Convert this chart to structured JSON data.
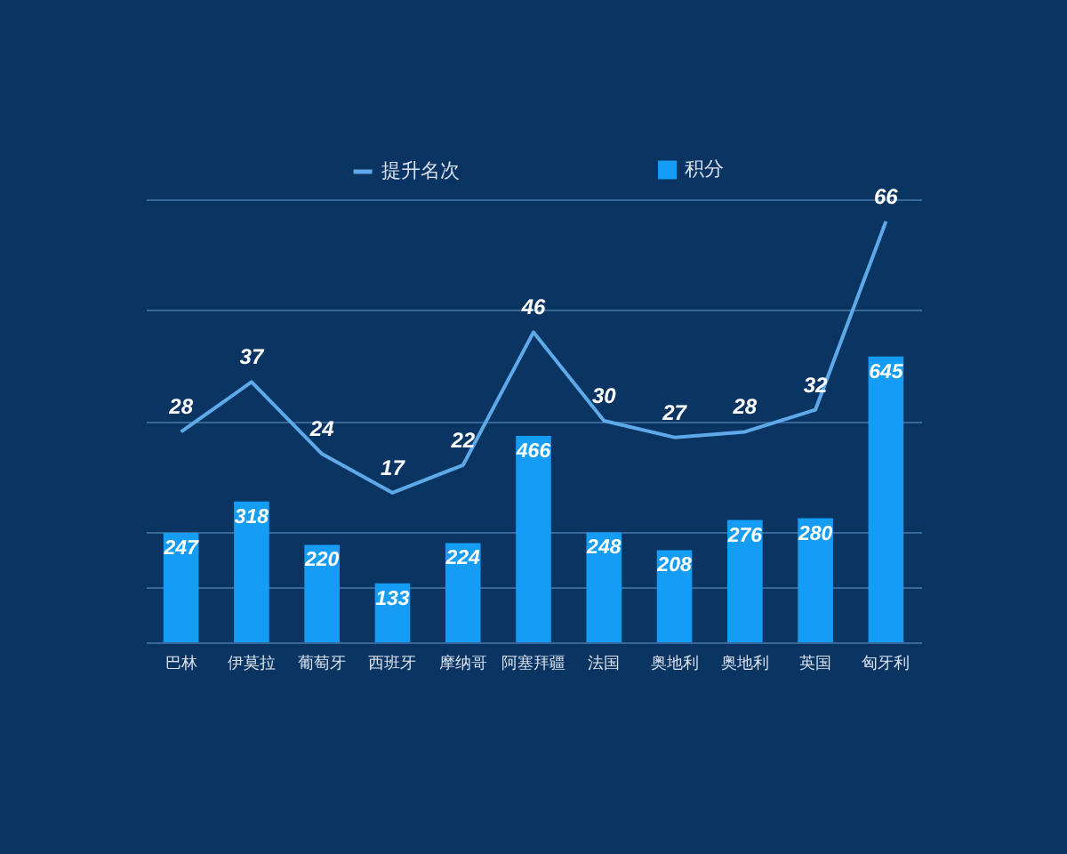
{
  "chart_data": {
    "type": "bar",
    "categories": [
      "巴林",
      "伊莫拉",
      "葡萄牙",
      "西班牙",
      "摩纳哥",
      "阿塞拜疆",
      "法国",
      "奥地利",
      "奥地利",
      "英国",
      "匈牙利"
    ],
    "series": [
      {
        "name": "提升名次",
        "type": "line",
        "axis": "y2",
        "color": "#5ea9ea",
        "line_style": "solid",
        "values": [
          28,
          37,
          24,
          17,
          22,
          46,
          30,
          27,
          28,
          32,
          66
        ]
      },
      {
        "name": "积分",
        "color": "#159cf5",
        "values": [
          247,
          318,
          220,
          133,
          224,
          466,
          248,
          208,
          276,
          280,
          645
        ]
      }
    ],
    "ylim": [
      0,
      1000
    ],
    "yticks": [
      {
        "value": 0,
        "label": null
      },
      {
        "value": 250,
        "label": null
      },
      {
        "value": 500,
        "label": null
      },
      {
        "value": 750,
        "label": null
      },
      {
        "value": 1000,
        "label": null
      }
    ],
    "y2lim": [
      -10,
      70
    ],
    "y2ticks": [
      {
        "value": 0,
        "label": null
      }
    ],
    "grid": "y",
    "legend": "top",
    "tick_labels": "x",
    "data_labels": true
  }
}
